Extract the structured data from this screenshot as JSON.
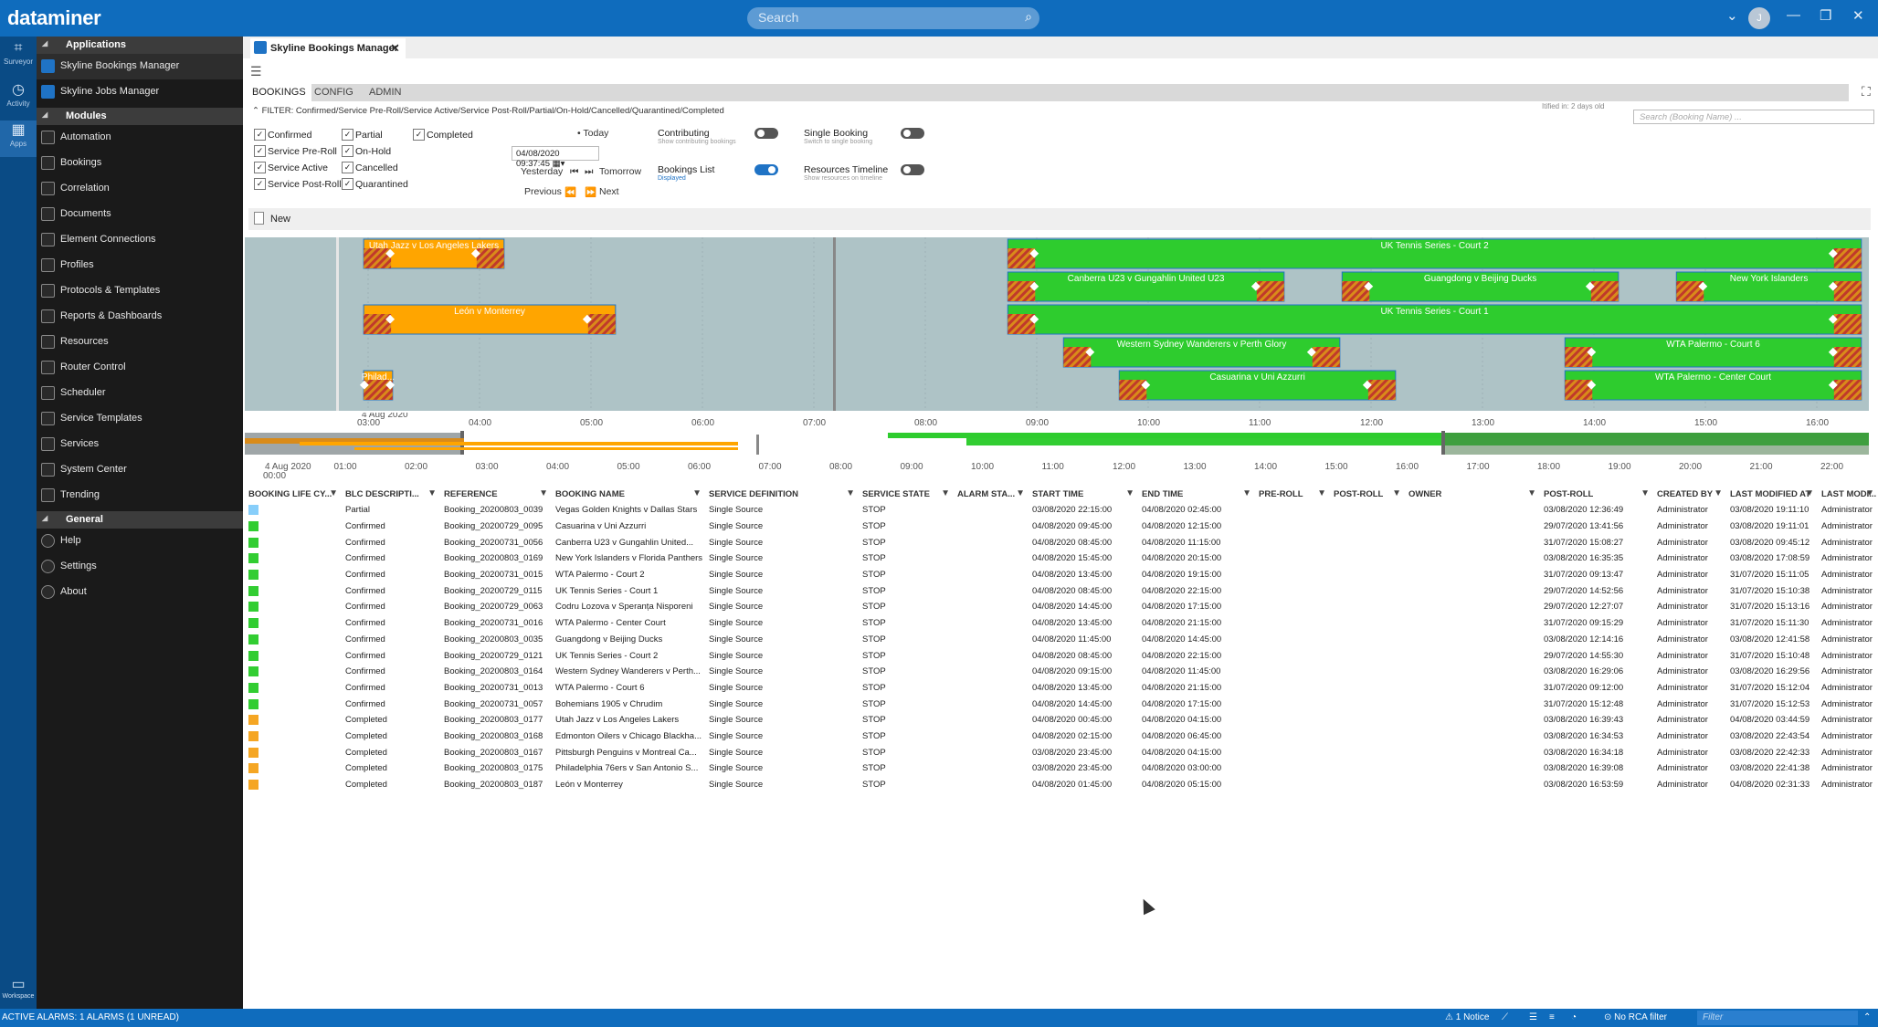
{
  "app": {
    "logo": "dataminer",
    "search_placeholder": "Search",
    "avatar_initial": "J",
    "window_controls": [
      "⌄",
      "—",
      "❐",
      "✕"
    ]
  },
  "rail": [
    {
      "label": "Surveyor",
      "icon": "surveyor-icon"
    },
    {
      "label": "Activity",
      "icon": "clock-icon"
    },
    {
      "label": "Apps",
      "icon": "apps-icon"
    }
  ],
  "workspace_label": "Workspace",
  "sidebar": {
    "applications_header": "Applications",
    "applications": [
      "Skyline Bookings Manager",
      "Skyline Jobs Manager"
    ],
    "modules_header": "Modules",
    "modules": [
      "Automation",
      "Bookings",
      "Correlation",
      "Documents",
      "Element Connections",
      "Profiles",
      "Protocols & Templates",
      "Reports & Dashboards",
      "Resources",
      "Router Control",
      "Scheduler",
      "Service Templates",
      "Services",
      "System Center",
      "Trending"
    ],
    "general_header": "General",
    "general": [
      "Help",
      "Settings",
      "About"
    ]
  },
  "tab": {
    "title": "Skyline Bookings Manager",
    "close": "✕"
  },
  "subtabs": [
    "BOOKINGS",
    "CONFIG",
    "ADMIN"
  ],
  "filter_text": "FILTER: Confirmed/Service Pre-Roll/Service Active/Service Post-Roll/Partial/On-Hold/Cancelled/Quarantined/Completed",
  "checkboxes": {
    "col1": [
      "Confirmed",
      "Service Pre-Roll",
      "Service Active",
      "Service Post-Roll"
    ],
    "col2": [
      "Partial",
      "On-Hold",
      "Cancelled",
      "Quarantined"
    ],
    "col3": [
      "Completed"
    ]
  },
  "nav": {
    "today": "Today",
    "date_value": "04/08/2020 09:37:45",
    "yesterday": "Yesterday",
    "tomorrow": "Tomorrow",
    "previous": "Previous",
    "next": "Next"
  },
  "options": {
    "contributing": {
      "title": "Contributing",
      "sub": "Show contributing bookings",
      "on": false
    },
    "single_booking": {
      "title": "Single Booking",
      "sub": "Switch to single booking",
      "on": false
    },
    "bookings_list": {
      "title": "Bookings List",
      "sub": "Displayed",
      "on": true
    },
    "resources_timeline": {
      "title": "Resources Timeline",
      "sub": "Show resources on timeline",
      "on": false
    }
  },
  "tiny_info": "Itified in: 2 days old",
  "booking_search_placeholder": "Search (Booking Name) ...",
  "new_label": "New",
  "timeline": {
    "date_label": "4 Aug 2020",
    "hours": [
      "03:00",
      "04:00",
      "05:00",
      "06:00",
      "07:00",
      "08:00",
      "09:00",
      "10:00",
      "11:00",
      "12:00",
      "13:00",
      "14:00",
      "15:00",
      "16:00"
    ],
    "overview_date": "4 Aug 2020",
    "overview_hours": [
      "00:00",
      "01:00",
      "02:00",
      "03:00",
      "04:00",
      "05:00",
      "06:00",
      "07:00",
      "08:00",
      "09:00",
      "10:00",
      "11:00",
      "12:00",
      "13:00",
      "14:00",
      "15:00",
      "16:00",
      "17:00",
      "18:00",
      "19:00",
      "20:00",
      "21:00",
      "22:00"
    ],
    "bars": [
      {
        "label": "Utah Jazz v Los Angeles Lakers",
        "row": 0,
        "start": 2.96,
        "end": 4.22,
        "color": "#ffa500"
      },
      {
        "label": "León v Monterrey",
        "row": 2,
        "start": 2.96,
        "end": 5.22,
        "color": "#ffa500"
      },
      {
        "label": "Philad...",
        "row": 4,
        "start": 2.96,
        "end": 3.22,
        "color": "#ffa500"
      },
      {
        "label": "UK Tennis Series - Court 2",
        "row": 0,
        "start": 8.74,
        "end": 16.4,
        "color": "#2ecc2e"
      },
      {
        "label": "Canberra U23 v Gungahlin United U23",
        "row": 1,
        "start": 8.74,
        "end": 11.22,
        "color": "#2ecc2e"
      },
      {
        "label": "Guangdong v Beijing Ducks",
        "row": 1,
        "start": 11.74,
        "end": 14.22,
        "color": "#2ecc2e"
      },
      {
        "label": "New York Islanders",
        "row": 1,
        "start": 14.74,
        "end": 16.4,
        "color": "#2ecc2e"
      },
      {
        "label": "UK Tennis Series - Court 1",
        "row": 2,
        "start": 8.74,
        "end": 16.4,
        "color": "#2ecc2e"
      },
      {
        "label": "Western Sydney Wanderers v Perth Glory",
        "row": 3,
        "start": 9.24,
        "end": 11.72,
        "color": "#2ecc2e"
      },
      {
        "label": "WTA Palermo - Court 6",
        "row": 3,
        "start": 13.74,
        "end": 16.4,
        "color": "#2ecc2e"
      },
      {
        "label": "Casuarina v Uni Azzurri",
        "row": 4,
        "start": 9.74,
        "end": 12.22,
        "color": "#2ecc2e"
      },
      {
        "label": "WTA Palermo - Center Court",
        "row": 4,
        "start": 13.74,
        "end": 16.4,
        "color": "#2ecc2e"
      }
    ]
  },
  "table": {
    "columns": [
      "BOOKING LIFE CY...",
      "BLC DESCRIPTI...",
      "REFERENCE",
      "BOOKING NAME",
      "SERVICE DEFINITION",
      "SERVICE STATE",
      "ALARM STA...",
      "START TIME",
      "END TIME",
      "PRE-ROLL",
      "POST-ROLL",
      "OWNER",
      "POST-ROLL",
      "CREATED BY",
      "LAST MODIFIED AT",
      "LAST MODI..."
    ],
    "rows": [
      {
        "color": "#87cefa",
        "blc": "Partial",
        "ref": "Booking_20200803_0039",
        "name": "Vegas Golden Knights v Dallas Stars",
        "def": "Single Source",
        "state": "STOP",
        "start": "03/08/2020 22:15:00",
        "end": "04/08/2020 02:45:00",
        "created": "03/08/2020 12:36:49",
        "by": "Administrator",
        "mod": "03/08/2020 19:11:10",
        "modby": "Administrator"
      },
      {
        "color": "#32cd32",
        "blc": "Confirmed",
        "ref": "Booking_20200729_0095",
        "name": "Casuarina v Uni Azzurri",
        "def": "Single Source",
        "state": "STOP",
        "start": "04/08/2020 09:45:00",
        "end": "04/08/2020 12:15:00",
        "created": "29/07/2020 13:41:56",
        "by": "Administrator",
        "mod": "03/08/2020 19:11:01",
        "modby": "Administrator"
      },
      {
        "color": "#32cd32",
        "blc": "Confirmed",
        "ref": "Booking_20200731_0056",
        "name": "Canberra U23 v Gungahlin United...",
        "def": "Single Source",
        "state": "STOP",
        "start": "04/08/2020 08:45:00",
        "end": "04/08/2020 11:15:00",
        "created": "31/07/2020 15:08:27",
        "by": "Administrator",
        "mod": "03/08/2020 09:45:12",
        "modby": "Administrator"
      },
      {
        "color": "#32cd32",
        "blc": "Confirmed",
        "ref": "Booking_20200803_0169",
        "name": "New York Islanders v Florida Panthers",
        "def": "Single Source",
        "state": "STOP",
        "start": "04/08/2020 15:45:00",
        "end": "04/08/2020 20:15:00",
        "created": "03/08/2020 16:35:35",
        "by": "Administrator",
        "mod": "03/08/2020 17:08:59",
        "modby": "Administrator"
      },
      {
        "color": "#32cd32",
        "blc": "Confirmed",
        "ref": "Booking_20200731_0015",
        "name": "WTA Palermo - Court 2",
        "def": "Single Source",
        "state": "STOP",
        "start": "04/08/2020 13:45:00",
        "end": "04/08/2020 19:15:00",
        "created": "31/07/2020 09:13:47",
        "by": "Administrator",
        "mod": "31/07/2020 15:11:05",
        "modby": "Administrator"
      },
      {
        "color": "#32cd32",
        "blc": "Confirmed",
        "ref": "Booking_20200729_0115",
        "name": "UK Tennis Series - Court 1",
        "def": "Single Source",
        "state": "STOP",
        "start": "04/08/2020 08:45:00",
        "end": "04/08/2020 22:15:00",
        "created": "29/07/2020 14:52:56",
        "by": "Administrator",
        "mod": "31/07/2020 15:10:38",
        "modby": "Administrator"
      },
      {
        "color": "#32cd32",
        "blc": "Confirmed",
        "ref": "Booking_20200729_0063",
        "name": "Codru Lozova v Speranța Nisporeni",
        "def": "Single Source",
        "state": "STOP",
        "start": "04/08/2020 14:45:00",
        "end": "04/08/2020 17:15:00",
        "created": "29/07/2020 12:27:07",
        "by": "Administrator",
        "mod": "31/07/2020 15:13:16",
        "modby": "Administrator"
      },
      {
        "color": "#32cd32",
        "blc": "Confirmed",
        "ref": "Booking_20200731_0016",
        "name": "WTA Palermo - Center Court",
        "def": "Single Source",
        "state": "STOP",
        "start": "04/08/2020 13:45:00",
        "end": "04/08/2020 21:15:00",
        "created": "31/07/2020 09:15:29",
        "by": "Administrator",
        "mod": "31/07/2020 15:11:30",
        "modby": "Administrator"
      },
      {
        "color": "#32cd32",
        "blc": "Confirmed",
        "ref": "Booking_20200803_0035",
        "name": "Guangdong v Beijing Ducks",
        "def": "Single Source",
        "state": "STOP",
        "start": "04/08/2020 11:45:00",
        "end": "04/08/2020 14:45:00",
        "created": "03/08/2020 12:14:16",
        "by": "Administrator",
        "mod": "03/08/2020 12:41:58",
        "modby": "Administrator"
      },
      {
        "color": "#32cd32",
        "blc": "Confirmed",
        "ref": "Booking_20200729_0121",
        "name": "UK Tennis Series - Court 2",
        "def": "Single Source",
        "state": "STOP",
        "start": "04/08/2020 08:45:00",
        "end": "04/08/2020 22:15:00",
        "created": "29/07/2020 14:55:30",
        "by": "Administrator",
        "mod": "31/07/2020 15:10:48",
        "modby": "Administrator"
      },
      {
        "color": "#32cd32",
        "blc": "Confirmed",
        "ref": "Booking_20200803_0164",
        "name": "Western Sydney Wanderers v Perth...",
        "def": "Single Source",
        "state": "STOP",
        "start": "04/08/2020 09:15:00",
        "end": "04/08/2020 11:45:00",
        "created": "03/08/2020 16:29:06",
        "by": "Administrator",
        "mod": "03/08/2020 16:29:56",
        "modby": "Administrator"
      },
      {
        "color": "#32cd32",
        "blc": "Confirmed",
        "ref": "Booking_20200731_0013",
        "name": "WTA Palermo - Court 6",
        "def": "Single Source",
        "state": "STOP",
        "start": "04/08/2020 13:45:00",
        "end": "04/08/2020 21:15:00",
        "created": "31/07/2020 09:12:00",
        "by": "Administrator",
        "mod": "31/07/2020 15:12:04",
        "modby": "Administrator"
      },
      {
        "color": "#32cd32",
        "blc": "Confirmed",
        "ref": "Booking_20200731_0057",
        "name": "Bohemians 1905 v Chrudim",
        "def": "Single Source",
        "state": "STOP",
        "start": "04/08/2020 14:45:00",
        "end": "04/08/2020 17:15:00",
        "created": "31/07/2020 15:12:48",
        "by": "Administrator",
        "mod": "31/07/2020 15:12:53",
        "modby": "Administrator"
      },
      {
        "color": "#f5a623",
        "blc": "Completed",
        "ref": "Booking_20200803_0177",
        "name": "Utah Jazz v Los Angeles Lakers",
        "def": "Single Source",
        "state": "STOP",
        "start": "04/08/2020 00:45:00",
        "end": "04/08/2020 04:15:00",
        "created": "03/08/2020 16:39:43",
        "by": "Administrator",
        "mod": "04/08/2020 03:44:59",
        "modby": "Administrator"
      },
      {
        "color": "#f5a623",
        "blc": "Completed",
        "ref": "Booking_20200803_0168",
        "name": "Edmonton Oilers v Chicago Blackha...",
        "def": "Single Source",
        "state": "STOP",
        "start": "04/08/2020 02:15:00",
        "end": "04/08/2020 06:45:00",
        "created": "03/08/2020 16:34:53",
        "by": "Administrator",
        "mod": "03/08/2020 22:43:54",
        "modby": "Administrator"
      },
      {
        "color": "#f5a623",
        "blc": "Completed",
        "ref": "Booking_20200803_0167",
        "name": "Pittsburgh Penguins v Montreal Ca...",
        "def": "Single Source",
        "state": "STOP",
        "start": "03/08/2020 23:45:00",
        "end": "04/08/2020 04:15:00",
        "created": "03/08/2020 16:34:18",
        "by": "Administrator",
        "mod": "03/08/2020 22:42:33",
        "modby": "Administrator"
      },
      {
        "color": "#f5a623",
        "blc": "Completed",
        "ref": "Booking_20200803_0175",
        "name": "Philadelphia 76ers v San Antonio S...",
        "def": "Single Source",
        "state": "STOP",
        "start": "03/08/2020 23:45:00",
        "end": "04/08/2020 03:00:00",
        "created": "03/08/2020 16:39:08",
        "by": "Administrator",
        "mod": "03/08/2020 22:41:38",
        "modby": "Administrator"
      },
      {
        "color": "#f5a623",
        "blc": "Completed",
        "ref": "Booking_20200803_0187",
        "name": "León v Monterrey",
        "def": "Single Source",
        "state": "STOP",
        "start": "04/08/2020 01:45:00",
        "end": "04/08/2020 05:15:00",
        "created": "03/08/2020 16:53:59",
        "by": "Administrator",
        "mod": "04/08/2020 02:31:33",
        "modby": "Administrator"
      }
    ]
  },
  "statusbar": {
    "alarms": "ACTIVE ALARMS: 1 ALARMS (1 UNREAD)",
    "notice": "1 Notice",
    "rca": "No RCA filter",
    "filter_placeholder": "Filter"
  }
}
